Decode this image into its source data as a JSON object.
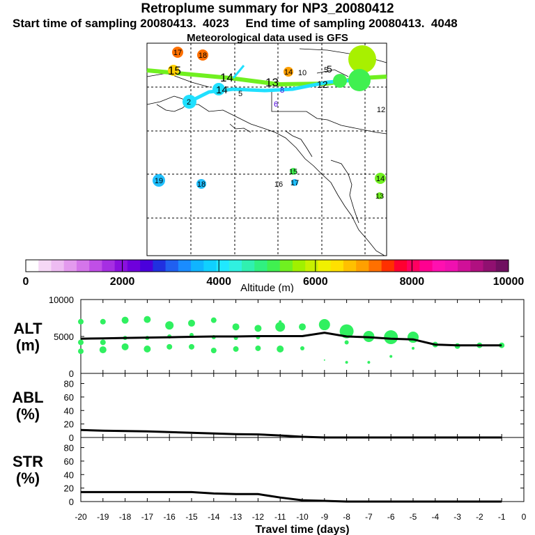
{
  "header": {
    "title": "Retroplume summary for NP3_20080412",
    "sampling": "Start time of sampling 20080413.  4023     End time of sampling 20080413.  4048",
    "met": "Meteorological data used is GFS"
  },
  "colorbar": {
    "label": "Altitude (m)",
    "ticks": [
      "0",
      "2000",
      "4000",
      "6000",
      "8000",
      "10000"
    ],
    "colors": [
      "#ffffff",
      "#f6d8f6",
      "#eebcf2",
      "#e39aee",
      "#d475ea",
      "#c04fe6",
      "#a62fe2",
      "#8a10de",
      "#6f00dc",
      "#4a00dc",
      "#2030e0",
      "#2060f0",
      "#1a8cff",
      "#10b4ff",
      "#10d0ff",
      "#20e8ff",
      "#30f0e0",
      "#30f0b0",
      "#30f080",
      "#40f050",
      "#70f020",
      "#a0f000",
      "#c8f000",
      "#f0f000",
      "#ffe000",
      "#ffc000",
      "#ffa000",
      "#ff7000",
      "#ff3000",
      "#ff0030",
      "#ff0060",
      "#ff0090",
      "#ff10b0",
      "#f010b0",
      "#d01098",
      "#b01080",
      "#901070",
      "#701060"
    ]
  },
  "map": {
    "labels_green": [
      {
        "t": "15"
      },
      {
        "t": "14"
      },
      {
        "t": "13"
      },
      {
        "t": "12"
      },
      {
        "t": "5"
      }
    ],
    "labels_cyan": [
      {
        "t": "14"
      },
      {
        "t": "5"
      },
      {
        "t": "2"
      },
      {
        "t": "6"
      },
      {
        "t": "8"
      }
    ],
    "dots": [
      {
        "t": "17",
        "c": "#ff7000"
      },
      {
        "t": "18",
        "c": "#ff7000"
      },
      {
        "t": "14",
        "c": "#ffa000"
      },
      {
        "t": "10",
        "c": "#40f050"
      },
      {
        "t": "5",
        "c": "#40f050"
      },
      {
        "t": "12",
        "c": "#ffd000"
      },
      {
        "t": "19",
        "c": "#20c0ff"
      },
      {
        "t": "18",
        "c": "#20c0ff"
      },
      {
        "t": "16",
        "c": "#20c0ff"
      },
      {
        "t": "17",
        "c": "#20c0ff"
      },
      {
        "t": "15",
        "c": "#40f050"
      },
      {
        "t": "14",
        "c": "#70f020"
      },
      {
        "t": "13",
        "c": "#70f020"
      }
    ]
  },
  "chart_data": [
    {
      "type": "line",
      "panel": "ALT",
      "ylabel": "ALT\n(m)",
      "ylabel_lines": [
        "ALT",
        "(m)"
      ],
      "ylim": [
        0,
        10000
      ],
      "yticks": [
        "10000",
        "5000",
        "0"
      ],
      "x": [
        -20,
        -19,
        -18,
        -17,
        -16,
        -15,
        -14,
        -13,
        -12,
        -11,
        -10,
        -9,
        -8,
        -7,
        -6,
        -5,
        -4,
        -3,
        -2,
        -1
      ],
      "median_line": [
        4700,
        4750,
        4800,
        4850,
        4900,
        4950,
        5000,
        5000,
        5050,
        5050,
        5050,
        5500,
        5000,
        4900,
        4700,
        4600,
        3900,
        3800,
        3800,
        3800
      ],
      "points": [
        {
          "x": -20,
          "y": 7000,
          "s": 4
        },
        {
          "x": -20,
          "y": 4200,
          "s": 4
        },
        {
          "x": -20,
          "y": 3000,
          "s": 4
        },
        {
          "x": -19,
          "y": 7000,
          "s": 4
        },
        {
          "x": -19,
          "y": 4200,
          "s": 4
        },
        {
          "x": -19,
          "y": 3200,
          "s": 5
        },
        {
          "x": -18,
          "y": 7200,
          "s": 5
        },
        {
          "x": -18,
          "y": 4800,
          "s": 3
        },
        {
          "x": -18,
          "y": 3600,
          "s": 5
        },
        {
          "x": -17,
          "y": 7300,
          "s": 5
        },
        {
          "x": -17,
          "y": 4800,
          "s": 3
        },
        {
          "x": -17,
          "y": 3300,
          "s": 5
        },
        {
          "x": -16,
          "y": 6500,
          "s": 6
        },
        {
          "x": -16,
          "y": 5000,
          "s": 3
        },
        {
          "x": -16,
          "y": 3600,
          "s": 4
        },
        {
          "x": -15,
          "y": 6800,
          "s": 5
        },
        {
          "x": -15,
          "y": 5200,
          "s": 3
        },
        {
          "x": -15,
          "y": 3600,
          "s": 4
        },
        {
          "x": -14,
          "y": 7200,
          "s": 4
        },
        {
          "x": -14,
          "y": 4900,
          "s": 3
        },
        {
          "x": -14,
          "y": 3100,
          "s": 4
        },
        {
          "x": -13,
          "y": 6300,
          "s": 5
        },
        {
          "x": -13,
          "y": 4800,
          "s": 3
        },
        {
          "x": -13,
          "y": 3300,
          "s": 4
        },
        {
          "x": -12,
          "y": 6100,
          "s": 5
        },
        {
          "x": -12,
          "y": 4900,
          "s": 3
        },
        {
          "x": -12,
          "y": 3400,
          "s": 4
        },
        {
          "x": -11,
          "y": 7000,
          "s": 2
        },
        {
          "x": -11,
          "y": 6300,
          "s": 7
        },
        {
          "x": -11,
          "y": 3300,
          "s": 5
        },
        {
          "x": -10,
          "y": 6300,
          "s": 5
        },
        {
          "x": -10,
          "y": 3400,
          "s": 3
        },
        {
          "x": -9,
          "y": 6600,
          "s": 8
        },
        {
          "x": -9,
          "y": 1800,
          "s": 1
        },
        {
          "x": -8,
          "y": 5700,
          "s": 10
        },
        {
          "x": -8,
          "y": 1500,
          "s": 2
        },
        {
          "x": -8,
          "y": 4200,
          "s": 3
        },
        {
          "x": -7,
          "y": 5000,
          "s": 8
        },
        {
          "x": -7,
          "y": 1500,
          "s": 2
        },
        {
          "x": -6,
          "y": 4900,
          "s": 10
        },
        {
          "x": -6,
          "y": 2300,
          "s": 2
        },
        {
          "x": -5,
          "y": 4900,
          "s": 8
        },
        {
          "x": -5,
          "y": 3400,
          "s": 2
        },
        {
          "x": -4,
          "y": 3900,
          "s": 4
        },
        {
          "x": -3,
          "y": 3700,
          "s": 4
        },
        {
          "x": -2,
          "y": 3800,
          "s": 4
        },
        {
          "x": -1,
          "y": 3800,
          "s": 4
        }
      ]
    },
    {
      "type": "line",
      "panel": "ABL",
      "ylabel_lines": [
        "ABL",
        "(%)"
      ],
      "ylim": [
        0,
        95
      ],
      "yticks": [
        "80",
        "60",
        "40",
        "20",
        "0"
      ],
      "x": [
        -20,
        -19,
        -18,
        -17,
        -16,
        -15,
        -14,
        -13,
        -12,
        -11,
        -10,
        -9,
        -8,
        -7,
        -6,
        -5,
        -4,
        -3,
        -2,
        -1
      ],
      "values": [
        11,
        10,
        9.5,
        9,
        8,
        7,
        6,
        5,
        4.5,
        3,
        1,
        0,
        0,
        0,
        0,
        0,
        0,
        0,
        0,
        0
      ]
    },
    {
      "type": "line",
      "panel": "STR",
      "ylabel_lines": [
        "STR",
        "(%)"
      ],
      "ylim": [
        0,
        95
      ],
      "yticks": [
        "80",
        "60",
        "40",
        "20",
        "0"
      ],
      "x": [
        -20,
        -19,
        -18,
        -17,
        -16,
        -15,
        -14,
        -13,
        -12,
        -11,
        -10,
        -9,
        -8,
        -7,
        -6,
        -5,
        -4,
        -3,
        -2,
        -1
      ],
      "values": [
        14,
        14,
        14,
        14,
        14,
        14,
        12,
        11,
        11,
        6,
        2,
        1,
        0,
        0,
        0,
        0,
        0,
        0,
        0,
        0
      ]
    }
  ],
  "xaxis": {
    "label": "Travel time (days)",
    "ticks": [
      "-20",
      "-19",
      "-18",
      "-17",
      "-16",
      "-15",
      "-14",
      "-13",
      "-12",
      "-11",
      "-10",
      "-9",
      "-8",
      "-7",
      "-6",
      "-5",
      "-4",
      "-3",
      "-2",
      "-1",
      "0"
    ]
  }
}
